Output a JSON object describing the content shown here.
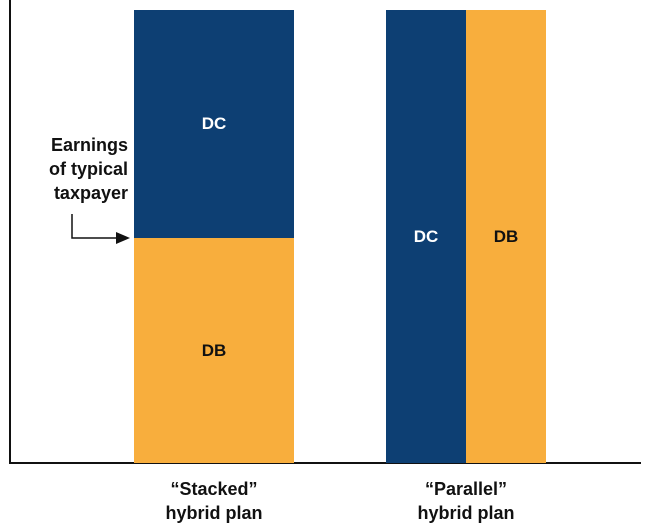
{
  "colors": {
    "dc": "#0d3f73",
    "db": "#f8ae3d",
    "axis": "#111111"
  },
  "stacked": {
    "segments": [
      {
        "label": "DC",
        "kind": "dc"
      },
      {
        "label": "DB",
        "kind": "db"
      }
    ],
    "caption_line1": "“Stacked”",
    "caption_line2": "hybrid plan"
  },
  "parallel": {
    "segments": [
      {
        "label": "DC",
        "kind": "dc"
      },
      {
        "label": "DB",
        "kind": "db"
      }
    ],
    "caption_line1": "“Parallel”",
    "caption_line2": "hybrid plan"
  },
  "annotation": {
    "line1": "Earnings",
    "line2": "of typical",
    "line3": "taxpayer"
  },
  "icons": {
    "pointer": "arrow-right-icon"
  }
}
